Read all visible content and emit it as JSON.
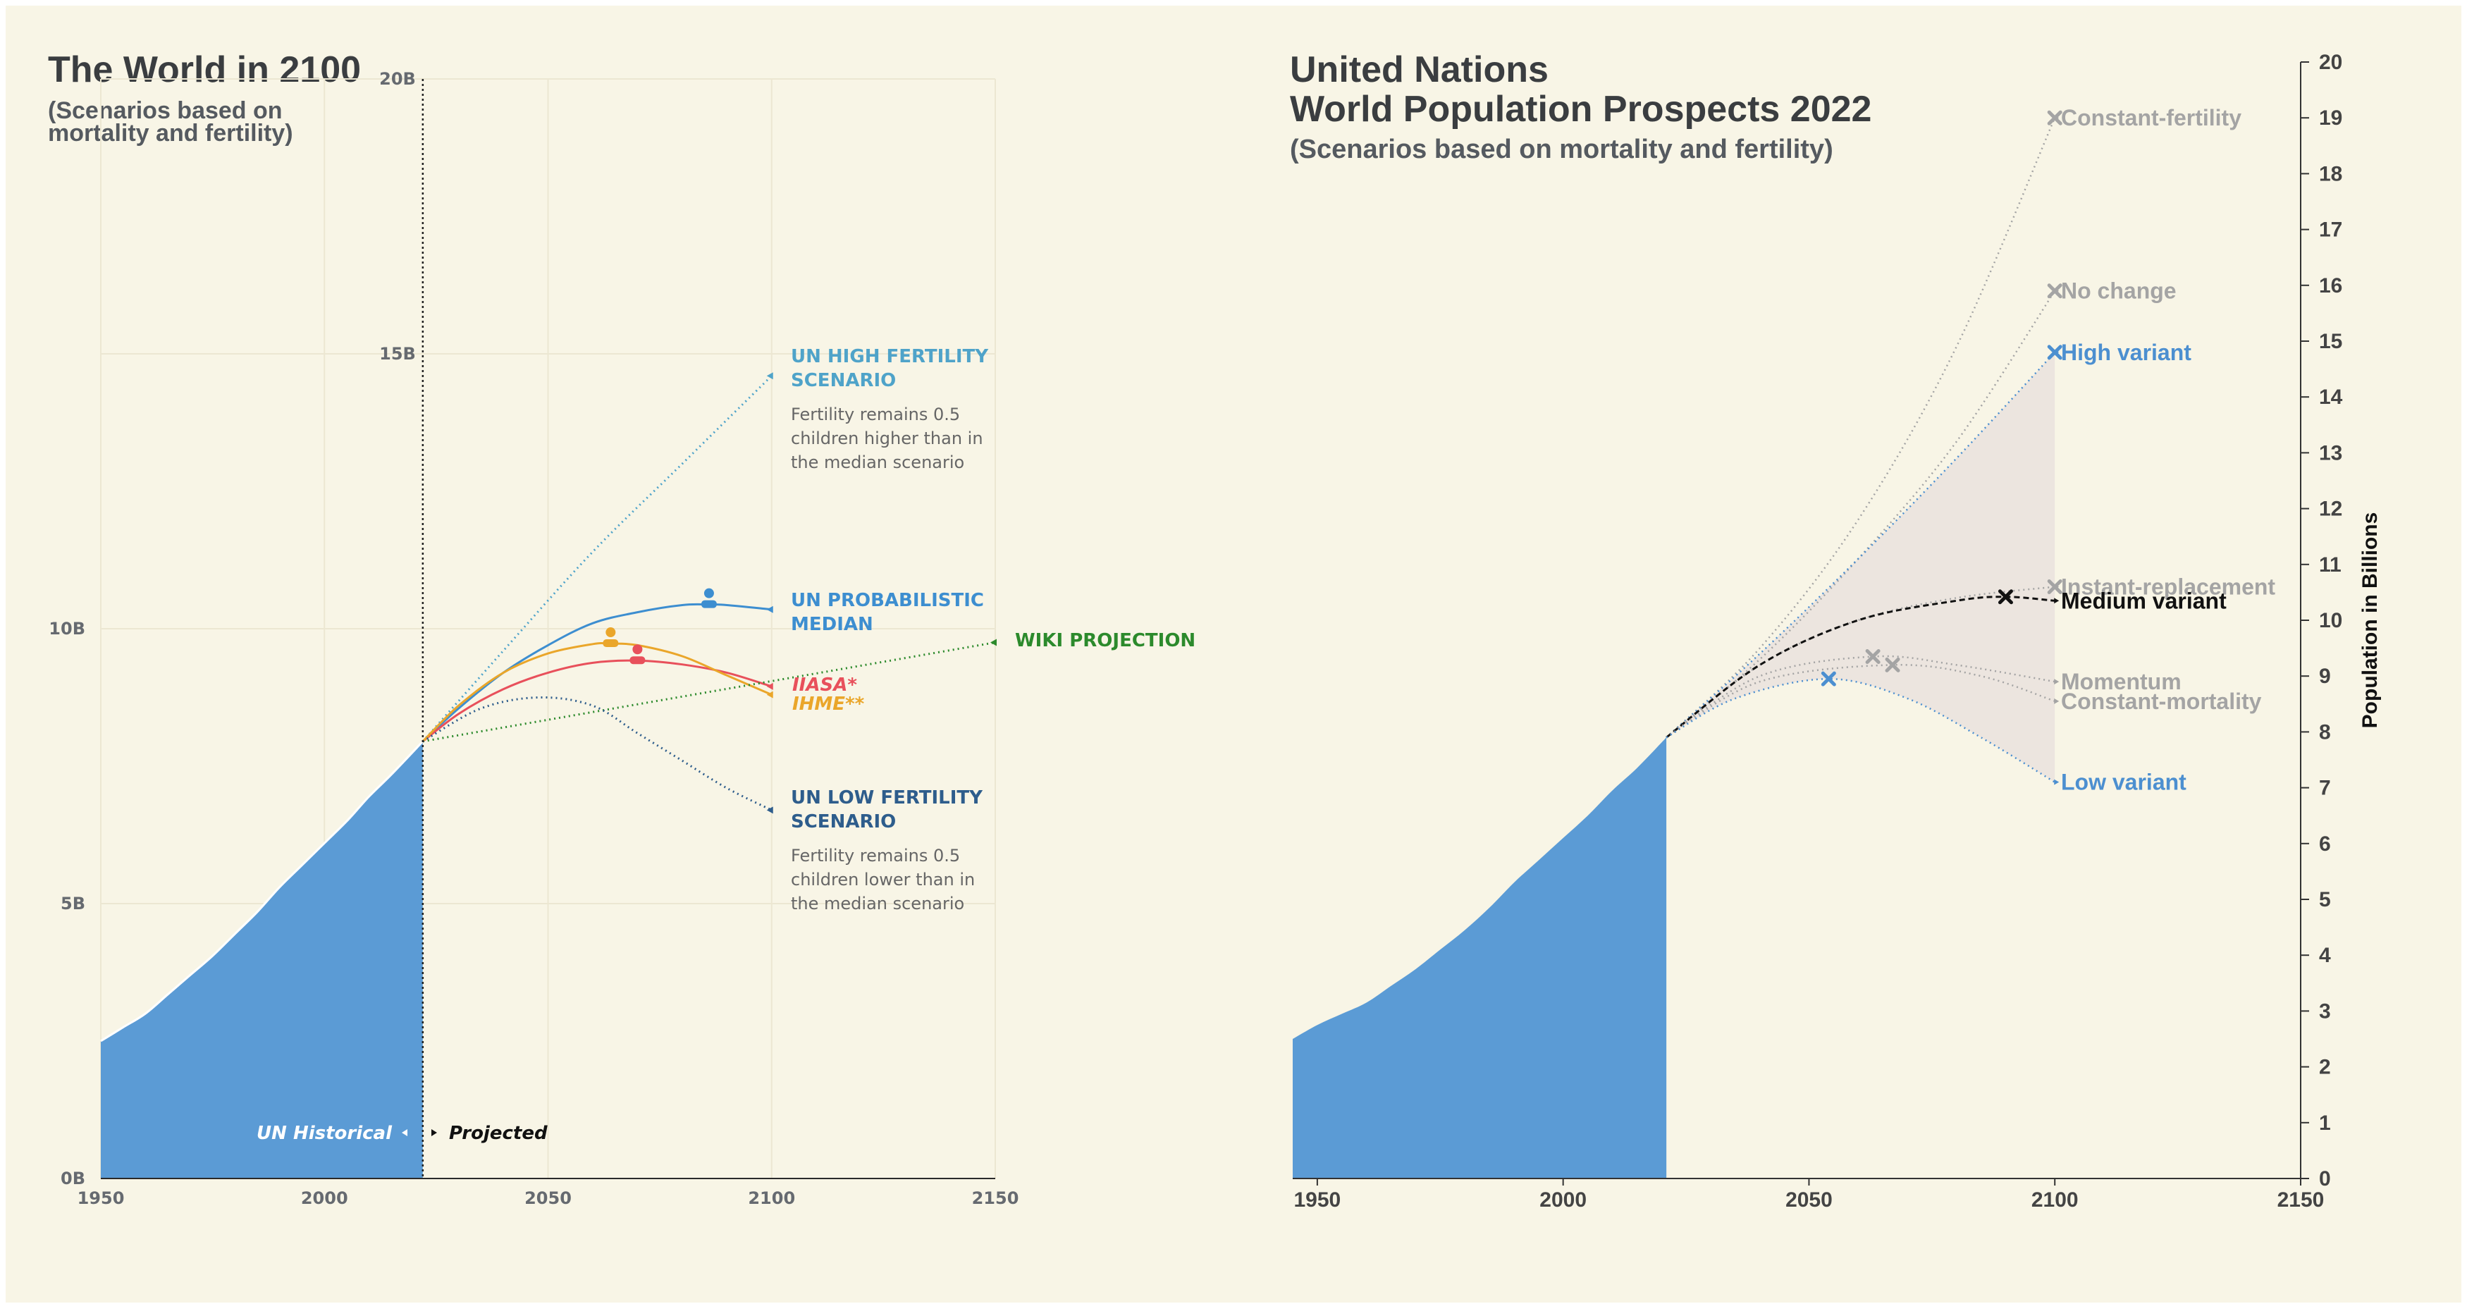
{
  "chart_data": [
    {
      "type": "area",
      "title": "The World in 2100",
      "subtitle": [
        "(Scenarios based on",
        "mortality and fertility)"
      ],
      "xlim": [
        1950,
        2150
      ],
      "ylim": [
        0,
        20
      ],
      "x_ticks": [
        "1950",
        "2000",
        "2050",
        "2100",
        "2150"
      ],
      "y_ticks": [
        {
          "value": 0,
          "label": "0B"
        },
        {
          "value": 5,
          "label": "5B"
        },
        {
          "value": 10,
          "label": "10B"
        },
        {
          "value": 15,
          "label": "15B"
        },
        {
          "value": 20,
          "label": "20B"
        }
      ],
      "annotations": {
        "historical": "UN Historical",
        "projected": "Projected"
      },
      "historical": {
        "x": [
          1950,
          1955,
          1960,
          1965,
          1970,
          1975,
          1980,
          1985,
          1990,
          1995,
          2000,
          2005,
          2010,
          2015,
          2022
        ],
        "values": [
          2.5,
          2.75,
          3.0,
          3.35,
          3.7,
          4.05,
          4.45,
          4.85,
          5.3,
          5.7,
          6.1,
          6.5,
          6.95,
          7.35,
          7.95
        ]
      },
      "series": [
        {
          "name": "UN HIGH FERTILITY SCENARIO",
          "label_lines": [
            "UN HIGH FERTILITY",
            "SCENARIO"
          ],
          "note_lines": [
            "Fertility remains 0.5",
            "children higher than in",
            "the median scenario"
          ],
          "color": "#4fa3c9",
          "style": "dotted",
          "x": [
            2022,
            2040,
            2060,
            2080,
            2100
          ],
          "values": [
            7.95,
            9.6,
            11.4,
            13.0,
            14.6
          ]
        },
        {
          "name": "UN PROBABILISTIC MEDIAN",
          "label_lines": [
            "UN PROBABILISTIC",
            "MEDIAN"
          ],
          "color": "#3d8ed0",
          "style": "solid",
          "x": [
            2022,
            2030,
            2040,
            2050,
            2060,
            2070,
            2080,
            2086,
            2090,
            2100
          ],
          "values": [
            7.95,
            8.55,
            9.2,
            9.7,
            10.1,
            10.3,
            10.43,
            10.44,
            10.43,
            10.35
          ]
        },
        {
          "name": "IIASA*",
          "label_lines": [
            "IIASA*"
          ],
          "color": "#e8505b",
          "style": "solid",
          "x": [
            2022,
            2030,
            2040,
            2050,
            2060,
            2070,
            2080,
            2090,
            2100
          ],
          "values": [
            7.95,
            8.45,
            8.9,
            9.2,
            9.38,
            9.42,
            9.35,
            9.2,
            8.95
          ]
        },
        {
          "name": "IHME**",
          "label_lines": [
            "IHME**"
          ],
          "color": "#eaa62a",
          "style": "solid",
          "x": [
            2022,
            2030,
            2040,
            2050,
            2060,
            2064,
            2070,
            2080,
            2090,
            2100
          ],
          "values": [
            7.95,
            8.6,
            9.2,
            9.55,
            9.72,
            9.73,
            9.7,
            9.5,
            9.15,
            8.8
          ]
        },
        {
          "name": "WIKI PROJECTION",
          "label_lines": [
            "WIKI PROJECTION"
          ],
          "color": "#2c8a2c",
          "style": "dotted",
          "x": [
            2022,
            2150
          ],
          "values": [
            7.95,
            9.75
          ]
        },
        {
          "name": "UN LOW FERTILITY SCENARIO",
          "label_lines": [
            "UN LOW FERTILITY",
            "SCENARIO"
          ],
          "note_lines": [
            "Fertility remains 0.5",
            "children lower than in",
            "the median scenario"
          ],
          "color": "#2e5d8c",
          "style": "dotted",
          "x": [
            2022,
            2035,
            2048,
            2060,
            2070,
            2080,
            2090,
            2100
          ],
          "values": [
            7.95,
            8.55,
            8.75,
            8.6,
            8.1,
            7.6,
            7.1,
            6.7
          ]
        }
      ],
      "peaks": [
        {
          "series": "UN PROBABILISTIC MEDIAN",
          "x": 2086,
          "y": 10.44,
          "color": "#3d8ed0"
        },
        {
          "series": "IHME**",
          "x": 2064,
          "y": 9.73,
          "color": "#eaa62a"
        },
        {
          "series": "IIASA*",
          "x": 2070,
          "y": 9.42,
          "color": "#e8505b"
        }
      ]
    },
    {
      "type": "area",
      "title_lines": [
        "United Nations",
        "World Population Prospects 2022"
      ],
      "subtitle": "(Scenarios based on mortality and fertility)",
      "ylabel": "Population in Billions",
      "xlim": [
        1945,
        2150
      ],
      "ylim": [
        0,
        20
      ],
      "x_ticks": [
        "1950",
        "2000",
        "2050",
        "2100",
        "2150"
      ],
      "y_ticks": [
        "0",
        "1",
        "2",
        "3",
        "4",
        "5",
        "6",
        "7",
        "8",
        "9",
        "10",
        "11",
        "12",
        "13",
        "14",
        "15",
        "16",
        "17",
        "18",
        "19",
        "20"
      ],
      "historical": {
        "x": [
          1945,
          1950,
          1955,
          1960,
          1965,
          1970,
          1975,
          1980,
          1985,
          1990,
          1995,
          2000,
          2005,
          2010,
          2015,
          2021
        ],
        "values": [
          2.5,
          2.75,
          2.95,
          3.15,
          3.45,
          3.75,
          4.1,
          4.45,
          4.85,
          5.3,
          5.7,
          6.1,
          6.5,
          6.95,
          7.35,
          7.9
        ]
      },
      "series": [
        {
          "name": "Constant-fertility",
          "color": "#a4a4a4",
          "style": "dotted",
          "x": [
            2021,
            2040,
            2060,
            2080,
            2100
          ],
          "values": [
            7.9,
            9.5,
            11.8,
            14.9,
            19.0
          ]
        },
        {
          "name": "No change",
          "color": "#a4a4a4",
          "style": "dotted",
          "x": [
            2021,
            2040,
            2060,
            2080,
            2100
          ],
          "values": [
            7.9,
            9.3,
            11.1,
            13.2,
            15.9
          ]
        },
        {
          "name": "High variant",
          "color": "#4c8fd0",
          "style": "dotted",
          "x": [
            2021,
            2040,
            2060,
            2080,
            2100
          ],
          "values": [
            7.9,
            9.4,
            11.1,
            12.9,
            14.8
          ]
        },
        {
          "name": "Instant-replacement",
          "color": "#a4a4a4",
          "style": "dotted",
          "x": [
            2021,
            2040,
            2060,
            2080,
            2100
          ],
          "values": [
            7.9,
            9.2,
            10.0,
            10.4,
            10.6
          ]
        },
        {
          "name": "Medium variant",
          "color": "#111111",
          "style": "dashed",
          "x": [
            2021,
            2040,
            2060,
            2080,
            2090,
            2100
          ],
          "values": [
            7.9,
            9.2,
            10.0,
            10.35,
            10.42,
            10.35
          ]
        },
        {
          "name": "Momentum",
          "color": "#a4a4a4",
          "style": "dotted",
          "x": [
            2021,
            2040,
            2063,
            2080,
            2100
          ],
          "values": [
            7.9,
            9.0,
            9.35,
            9.2,
            8.9
          ]
        },
        {
          "name": "Constant-mortality",
          "color": "#a4a4a4",
          "style": "dotted",
          "x": [
            2021,
            2040,
            2067,
            2085,
            2100
          ],
          "values": [
            7.9,
            8.9,
            9.2,
            9.0,
            8.55
          ]
        },
        {
          "name": "Low variant",
          "color": "#4c8fd0",
          "style": "dotted",
          "x": [
            2021,
            2035,
            2054,
            2070,
            2085,
            2100
          ],
          "values": [
            7.9,
            8.6,
            8.95,
            8.6,
            7.9,
            7.1
          ]
        }
      ],
      "band": {
        "from": "Low variant",
        "to": "High variant",
        "color": "#ece5df"
      },
      "markers": [
        {
          "series": "Constant-fertility",
          "x": 2100,
          "y": 19.0,
          "color": "#a4a4a4"
        },
        {
          "series": "No change",
          "x": 2100,
          "y": 15.9,
          "color": "#a4a4a4"
        },
        {
          "series": "High variant",
          "x": 2100,
          "y": 14.8,
          "color": "#4c8fd0"
        },
        {
          "series": "Instant-replacement",
          "x": 2100,
          "y": 10.6,
          "color": "#a4a4a4"
        },
        {
          "series": "Medium variant",
          "x": 2090,
          "y": 10.42,
          "color": "#111111"
        },
        {
          "series": "Momentum",
          "x": 2063,
          "y": 9.35,
          "color": "#a4a4a4"
        },
        {
          "series": "Constant-mortality",
          "x": 2067,
          "y": 9.2,
          "color": "#a4a4a4"
        },
        {
          "series": "Low variant",
          "x": 2054,
          "y": 8.95,
          "color": "#4c8fd0"
        }
      ]
    }
  ]
}
